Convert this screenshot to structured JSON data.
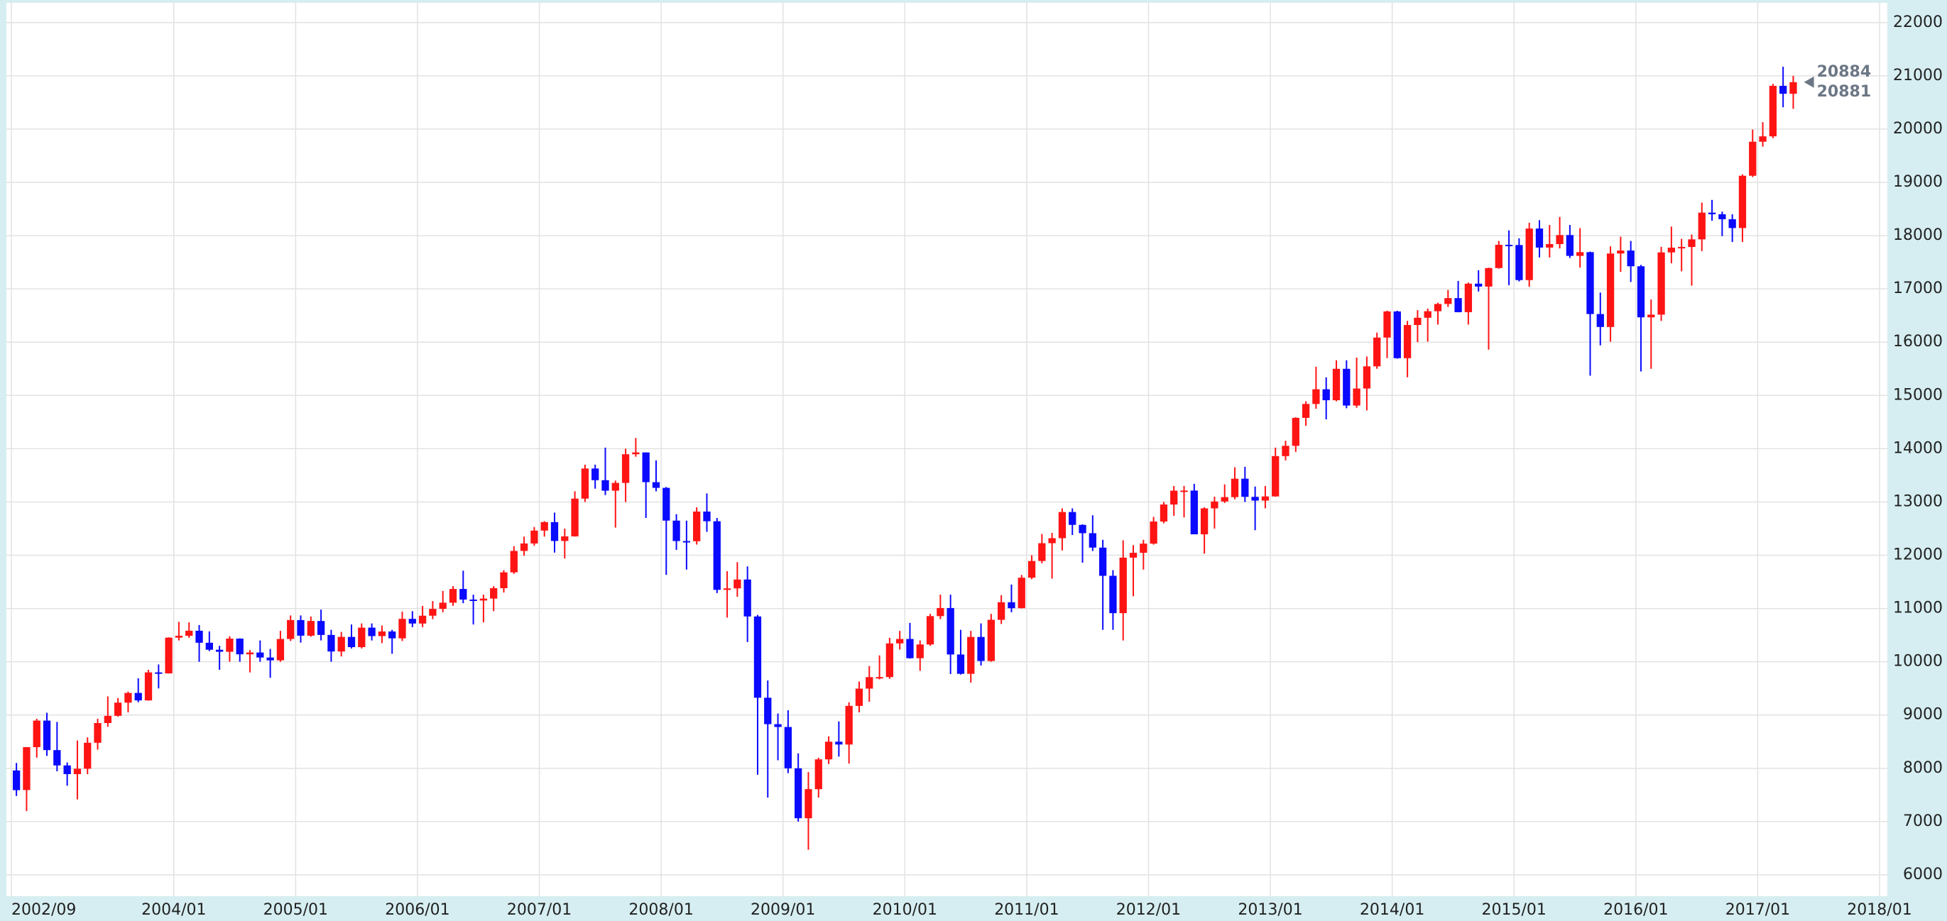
{
  "chart_data": {
    "type": "candlestick",
    "x": [
      "2002/09",
      "2002/10",
      "2002/11",
      "2002/12",
      "2003/01",
      "2003/02",
      "2003/03",
      "2003/04",
      "2003/05",
      "2003/06",
      "2003/07",
      "2003/08",
      "2003/09",
      "2003/10",
      "2003/11",
      "2003/12",
      "2004/01",
      "2004/02",
      "2004/03",
      "2004/04",
      "2004/05",
      "2004/06",
      "2004/07",
      "2004/08",
      "2004/09",
      "2004/10",
      "2004/11",
      "2004/12",
      "2005/01",
      "2005/02",
      "2005/03",
      "2005/04",
      "2005/05",
      "2005/06",
      "2005/07",
      "2005/08",
      "2005/09",
      "2005/10",
      "2005/11",
      "2005/12",
      "2006/01",
      "2006/02",
      "2006/03",
      "2006/04",
      "2006/05",
      "2006/06",
      "2006/07",
      "2006/08",
      "2006/09",
      "2006/10",
      "2006/11",
      "2006/12",
      "2007/01",
      "2007/02",
      "2007/03",
      "2007/04",
      "2007/05",
      "2007/06",
      "2007/07",
      "2007/08",
      "2007/09",
      "2007/10",
      "2007/11",
      "2007/12",
      "2008/01",
      "2008/02",
      "2008/03",
      "2008/04",
      "2008/05",
      "2008/06",
      "2008/07",
      "2008/08",
      "2008/09",
      "2008/10",
      "2008/11",
      "2008/12",
      "2009/01",
      "2009/02",
      "2009/03",
      "2009/04",
      "2009/05",
      "2009/06",
      "2009/07",
      "2009/08",
      "2009/09",
      "2009/10",
      "2009/11",
      "2009/12",
      "2010/01",
      "2010/02",
      "2010/03",
      "2010/04",
      "2010/05",
      "2010/06",
      "2010/07",
      "2010/08",
      "2010/09",
      "2010/10",
      "2010/11",
      "2010/12",
      "2011/01",
      "2011/02",
      "2011/03",
      "2011/04",
      "2011/05",
      "2011/06",
      "2011/07",
      "2011/08",
      "2011/09",
      "2011/10",
      "2011/11",
      "2011/12",
      "2012/01",
      "2012/02",
      "2012/03",
      "2012/04",
      "2012/05",
      "2012/06",
      "2012/07",
      "2012/08",
      "2012/09",
      "2012/10",
      "2012/11",
      "2012/12",
      "2013/01",
      "2013/02",
      "2013/03",
      "2013/04",
      "2013/05",
      "2013/06",
      "2013/07",
      "2013/08",
      "2013/09",
      "2013/10",
      "2013/11",
      "2013/12",
      "2014/01",
      "2014/02",
      "2014/03",
      "2014/04",
      "2014/05",
      "2014/06",
      "2014/07",
      "2014/08",
      "2014/09",
      "2014/10",
      "2014/11",
      "2014/12",
      "2015/01",
      "2015/02",
      "2015/03",
      "2015/04",
      "2015/05",
      "2015/06",
      "2015/07",
      "2015/08",
      "2015/09",
      "2015/10",
      "2015/11",
      "2015/12",
      "2016/01",
      "2016/02",
      "2016/03",
      "2016/04",
      "2016/05",
      "2016/06",
      "2016/07",
      "2016/08",
      "2016/09",
      "2016/10",
      "2016/11",
      "2016/12",
      "2017/01",
      "2017/02",
      "2017/03",
      "2017/04"
    ],
    "open": [
      7960,
      7592,
      8397,
      8896,
      8342,
      8054,
      7891,
      7992,
      8480,
      8850,
      8985,
      9233,
      9415,
      9275,
      9801,
      9782,
      10453,
      10488,
      10583,
      10357,
      10226,
      10188,
      10435,
      10140,
      10174,
      10080,
      10027,
      10428,
      10783,
      10490,
      10766,
      10504,
      10193,
      10467,
      10275,
      10641,
      10482,
      10569,
      10440,
      10806,
      10718,
      10865,
      10993,
      11109,
      11367,
      11168,
      11150,
      11186,
      11381,
      11679,
      12081,
      12221,
      12463,
      12622,
      12268,
      12354,
      13063,
      13628,
      13409,
      13212,
      13358,
      13896,
      13930,
      13372,
      13265,
      12650,
      12266,
      12263,
      12820,
      12638,
      11350,
      11378,
      11544,
      10851,
      9325,
      8829,
      8776,
      8000,
      7063,
      7609,
      8168,
      8500,
      8447,
      9172,
      9496,
      9712,
      9713,
      10345,
      10428,
      10067,
      10325,
      10857,
      11009,
      10137,
      9774,
      10466,
      10015,
      10788,
      11118,
      11006,
      11578,
      11892,
      12226,
      12320,
      12811,
      12570,
      12414,
      12143,
      11614,
      10913,
      11955,
      12046,
      12218,
      12633,
      12952,
      13212,
      13214,
      12393,
      12880,
      13009,
      13091,
      13437,
      13096,
      13026,
      13104,
      13861,
      14054,
      14579,
      14840,
      15116,
      14910,
      15500,
      14810,
      15130,
      15546,
      16086,
      16577,
      15699,
      16322,
      16458,
      16581,
      16717,
      16827,
      16563,
      17098,
      17043,
      17391,
      17828,
      17823,
      17165,
      18133,
      17776,
      17841,
      18011,
      17620,
      17690,
      16528,
      16285,
      17664,
      17720,
      17425,
      16466,
      16517,
      17685,
      17774,
      17787,
      17930,
      18432,
      18401,
      18308,
      18142,
      19124,
      19763,
      19864,
      20812,
      20663
    ],
    "high": [
      8100,
      8400,
      8930,
      9043,
      8870,
      8110,
      8522,
      8580,
      8930,
      9350,
      9320,
      9440,
      9690,
      9850,
      9950,
      10460,
      10750,
      10740,
      10690,
      10570,
      10300,
      10480,
      10440,
      10220,
      10400,
      10240,
      10580,
      10870,
      10870,
      10850,
      10980,
      10600,
      10560,
      10700,
      10720,
      10720,
      10680,
      10600,
      10940,
      10950,
      11050,
      11140,
      11330,
      11420,
      11710,
      11260,
      11260,
      11420,
      11720,
      12170,
      12350,
      12530,
      12640,
      12800,
      12500,
      13200,
      13700,
      13700,
      14020,
      13400,
      14000,
      14200,
      13930,
      13780,
      13280,
      12770,
      12650,
      12900,
      13160,
      12700,
      11700,
      11870,
      11790,
      10880,
      9650,
      9030,
      9090,
      8280,
      7930,
      8200,
      8600,
      8880,
      9240,
      9630,
      9920,
      10120,
      10450,
      10580,
      10730,
      10400,
      10900,
      11260,
      11260,
      10600,
      10580,
      10720,
      10900,
      11250,
      11450,
      11630,
      12000,
      12400,
      12420,
      12880,
      12880,
      12580,
      12750,
      12290,
      11720,
      12280,
      12190,
      12290,
      12720,
      13000,
      13300,
      13300,
      13340,
      12900,
      13100,
      13330,
      13650,
      13660,
      13290,
      13300,
      14020,
      14150,
      14590,
      14890,
      15540,
      15340,
      15660,
      15660,
      15710,
      15730,
      16180,
      16590,
      16590,
      16400,
      16600,
      16630,
      16740,
      16980,
      17150,
      17120,
      17350,
      17400,
      17900,
      18100,
      17950,
      18240,
      18290,
      18200,
      18350,
      18200,
      18140,
      17700,
      16930,
      17800,
      17980,
      17900,
      17450,
      16800,
      17790,
      18170,
      17940,
      18020,
      18620,
      18670,
      18450,
      18400,
      19150,
      19990,
      20130,
      20850,
      21170,
      21000
    ],
    "low": [
      7480,
      7197,
      8200,
      8233,
      7945,
      7673,
      7416,
      7890,
      8350,
      8780,
      8970,
      9050,
      9240,
      9270,
      9500,
      9780,
      10400,
      10450,
      10000,
      10200,
      9850,
      10000,
      10000,
      9800,
      10000,
      9700,
      10000,
      10390,
      10360,
      10470,
      10400,
      10000,
      10100,
      10250,
      10250,
      10400,
      10350,
      10150,
      10390,
      10650,
      10650,
      10800,
      10930,
      11050,
      11100,
      10700,
      10740,
      10950,
      11300,
      11650,
      11990,
      12180,
      12350,
      12050,
      11940,
      12350,
      13000,
      13250,
      13130,
      12520,
      13000,
      13850,
      12700,
      13200,
      11630,
      12100,
      11730,
      12200,
      12440,
      11290,
      10830,
      11220,
      10370,
      7880,
      7450,
      8150,
      7910,
      7000,
      6470,
      7450,
      8080,
      8220,
      8090,
      9050,
      9250,
      9670,
      9680,
      10230,
      10060,
      9830,
      10300,
      10800,
      9770,
      9760,
      9610,
      9930,
      10000,
      10710,
      10930,
      11000,
      11550,
      11850,
      11560,
      12090,
      12380,
      11860,
      12080,
      10600,
      10600,
      10400,
      11230,
      11730,
      12200,
      12600,
      12740,
      12710,
      12400,
      12030,
      12500,
      12980,
      13050,
      13000,
      12470,
      12880,
      13100,
      13780,
      13940,
      14430,
      14750,
      14550,
      14890,
      14760,
      14770,
      14720,
      15500,
      15700,
      15690,
      15340,
      16000,
      16010,
      16330,
      16660,
      16560,
      16330,
      16950,
      15860,
      17380,
      17070,
      17140,
      17040,
      17590,
      17590,
      17760,
      17580,
      17400,
      15370,
      15940,
      16010,
      17320,
      17130,
      15450,
      15500,
      16400,
      17480,
      17330,
      17060,
      17710,
      18280,
      17990,
      17880,
      17880,
      19100,
      19670,
      19830,
      20410,
      20380
    ],
    "close": [
      7590,
      8397,
      8896,
      8342,
      8054,
      7891,
      7992,
      8480,
      8850,
      8985,
      9233,
      9415,
      9275,
      9801,
      9782,
      10453,
      10488,
      10583,
      10357,
      10226,
      10188,
      10435,
      10140,
      10174,
      10080,
      10027,
      10428,
      10783,
      10490,
      10766,
      10504,
      10193,
      10467,
      10275,
      10641,
      10482,
      10569,
      10440,
      10806,
      10718,
      10865,
      10993,
      11109,
      11367,
      11168,
      11150,
      11186,
      11381,
      11679,
      12081,
      12221,
      12463,
      12622,
      12268,
      12354,
      13063,
      13628,
      13409,
      13212,
      13358,
      13896,
      13930,
      13372,
      13265,
      12650,
      12266,
      12263,
      12820,
      12638,
      11350,
      11378,
      11544,
      10851,
      9325,
      8829,
      8776,
      8000,
      7063,
      7609,
      8168,
      8500,
      8447,
      9172,
      9496,
      9712,
      9713,
      10345,
      10428,
      10067,
      10325,
      10857,
      11009,
      10137,
      9774,
      10466,
      10015,
      10788,
      11118,
      11006,
      11578,
      11892,
      12226,
      12320,
      12811,
      12570,
      12414,
      12143,
      11614,
      10913,
      11955,
      12046,
      12218,
      12633,
      12952,
      13212,
      13214,
      12393,
      12880,
      13009,
      13091,
      13437,
      13096,
      13026,
      13104,
      13861,
      14054,
      14579,
      14840,
      15116,
      14910,
      15500,
      14810,
      15130,
      15546,
      16086,
      16577,
      15699,
      16322,
      16458,
      16581,
      16717,
      16827,
      16563,
      17098,
      17043,
      17391,
      17828,
      17823,
      17165,
      18133,
      17776,
      17841,
      18011,
      17620,
      17690,
      16528,
      16285,
      17664,
      17720,
      17425,
      16466,
      16517,
      17685,
      17774,
      17787,
      17930,
      18432,
      18401,
      18308,
      18142,
      19124,
      19763,
      19864,
      20812,
      20663,
      20881
    ],
    "up_color": "#ff1414",
    "down_color": "#0a0aff",
    "xticks": [
      "2002/09",
      "2004/01",
      "2005/01",
      "2006/01",
      "2007/01",
      "2008/01",
      "2009/01",
      "2010/01",
      "2011/01",
      "2012/01",
      "2013/01",
      "2014/01",
      "2015/01",
      "2016/01",
      "2017/01",
      "2018/01"
    ],
    "ylim": [
      5600,
      22370
    ],
    "yticks": [
      6000,
      7000,
      8000,
      9000,
      10000,
      11000,
      12000,
      13000,
      14000,
      15000,
      16000,
      17000,
      18000,
      19000,
      20000,
      21000,
      22000
    ],
    "y_axis_side": "right",
    "grid": true,
    "last_price_labels": [
      20884,
      20881
    ]
  }
}
